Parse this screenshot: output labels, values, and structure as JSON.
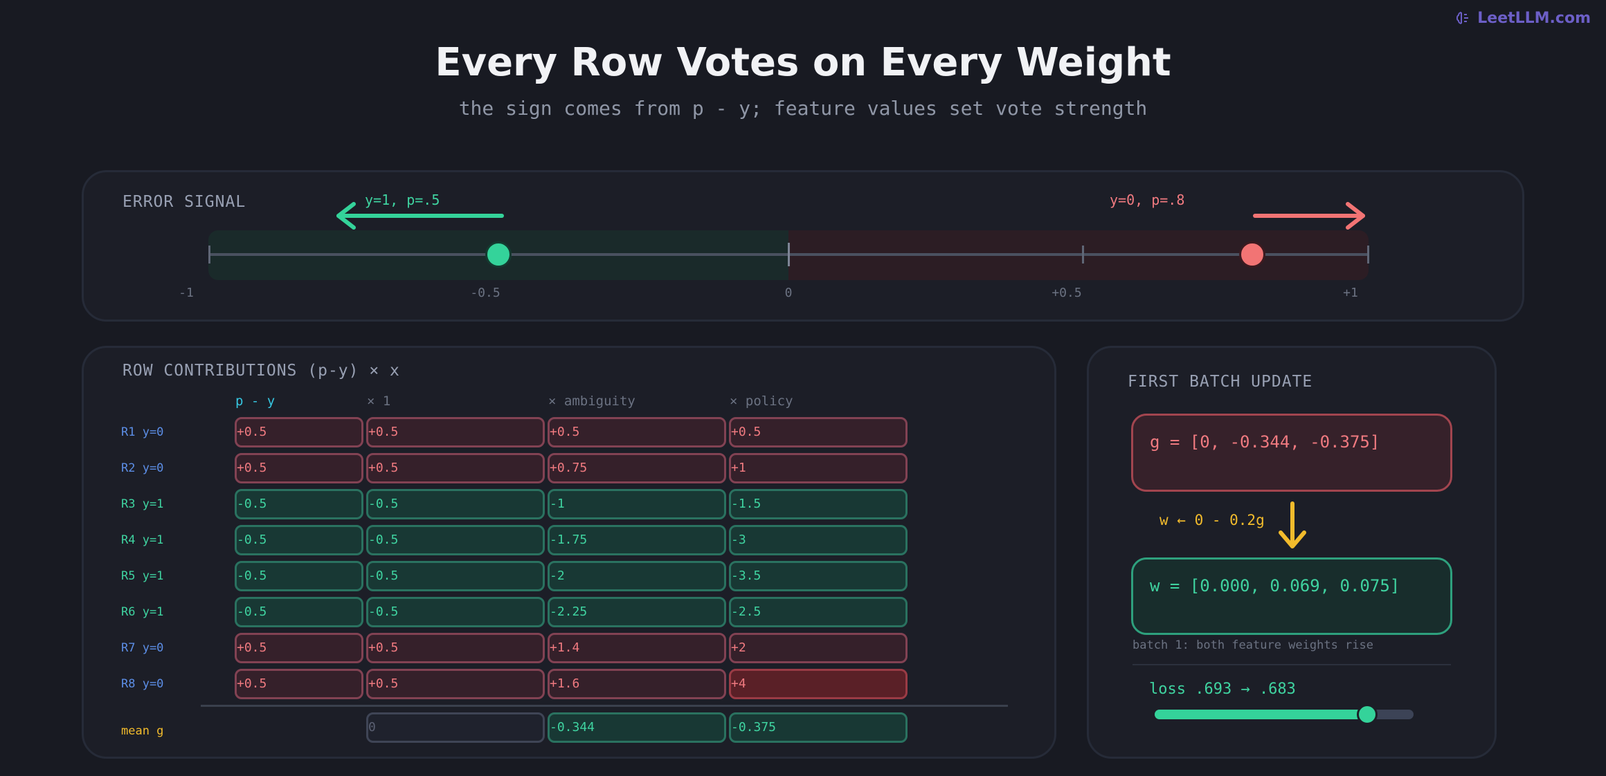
{
  "brand": {
    "name": "LeetLLM.com",
    "icon": "brain-icon"
  },
  "title": "Every Row Votes on Every Weight",
  "subtitle": "the sign comes from p - y; feature values set vote strength",
  "error_signal": {
    "label": "ERROR SIGNAL",
    "ticks": [
      "-1",
      "-0.5",
      "0",
      "+0.5",
      "+1"
    ],
    "cases": [
      {
        "label": "y=1, p=.5",
        "value": -0.5,
        "color": "#34d39a"
      },
      {
        "label": "y=0, p=.8",
        "value": 0.8,
        "color": "#f27474"
      }
    ]
  },
  "contributions": {
    "label": "ROW CONTRIBUTIONS (p-y) × x",
    "headers": [
      "p - y",
      "× 1",
      "× ambiguity",
      "× policy"
    ],
    "rows": [
      {
        "label": "R1 y=0",
        "cells": [
          "+0.5",
          "+0.5",
          "+0.5",
          "+0.5"
        ]
      },
      {
        "label": "R2 y=0",
        "cells": [
          "+0.5",
          "+0.5",
          "+0.75",
          "+1"
        ]
      },
      {
        "label": "R3 y=1",
        "cells": [
          "-0.5",
          "-0.5",
          "-1",
          "-1.5"
        ]
      },
      {
        "label": "R4 y=1",
        "cells": [
          "-0.5",
          "-0.5",
          "-1.75",
          "-3"
        ]
      },
      {
        "label": "R5 y=1",
        "cells": [
          "-0.5",
          "-0.5",
          "-2",
          "-3.5"
        ]
      },
      {
        "label": "R6 y=1",
        "cells": [
          "-0.5",
          "-0.5",
          "-2.25",
          "-2.5"
        ]
      },
      {
        "label": "R7 y=0",
        "cells": [
          "+0.5",
          "+0.5",
          "+1.4",
          "+2"
        ]
      },
      {
        "label": "R8 y=0",
        "cells": [
          "+0.5",
          "+0.5",
          "+1.6",
          "+4"
        ]
      }
    ],
    "mean": {
      "label": "mean g",
      "cells": [
        "0",
        "-0.344",
        "-0.375"
      ]
    }
  },
  "update": {
    "label": "FIRST BATCH UPDATE",
    "gradient": "g = [0, -0.344, -0.375]",
    "rule": "w ← 0 - 0.2g",
    "weights": "w = [0.000, 0.069, 0.075]",
    "note": "batch 1: both feature weights rise",
    "loss": "loss .693 → .683",
    "loss_progress": 0.82
  },
  "colors": {
    "positive": "#f07a80",
    "negative": "#3fd3a0",
    "accent": "#f2bb2c",
    "header_active": "#36c6e0",
    "row_label_y0": "#5c8ee6",
    "row_label_y1": "#3fd3a0"
  }
}
